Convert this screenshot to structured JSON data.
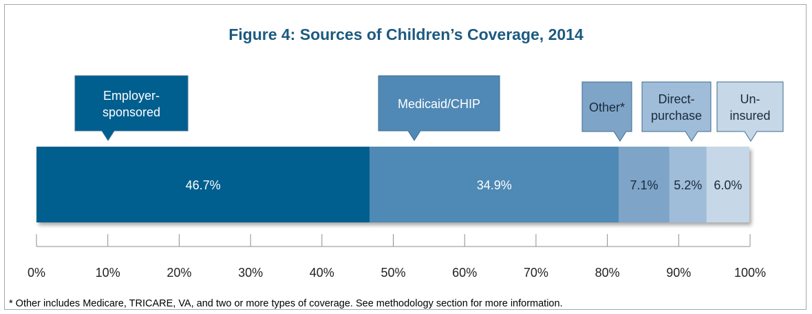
{
  "title": "Figure 4: Sources of Children’s Coverage, 2014",
  "footnote": "* Other includes Medicare, TRICARE, VA, and two or more types of coverage. See methodology section for more information.",
  "colors": {
    "employer": "#005f8f",
    "medicaid": "#5089b5",
    "other": "#7ea4c8",
    "direct": "#9fbcd9",
    "uninsured": "#c6d7e7",
    "title": "#1c5a80"
  },
  "chart_data": {
    "type": "bar",
    "orientation": "horizontal-stacked",
    "title": "Figure 4: Sources of Children’s Coverage, 2014",
    "xlim": [
      0,
      100
    ],
    "x_ticks": [
      "0%",
      "10%",
      "20%",
      "30%",
      "40%",
      "50%",
      "60%",
      "70%",
      "80%",
      "90%",
      "100%"
    ],
    "series": [
      {
        "name": "Employer-sponsored",
        "label_lines": [
          "Employer-",
          "sponsored"
        ],
        "value": 46.7,
        "value_label": "46.7%",
        "color": "#005f8f",
        "text_color": "#ffffff"
      },
      {
        "name": "Medicaid/CHIP",
        "label_lines": [
          "Medicaid/CHIP"
        ],
        "value": 34.9,
        "value_label": "34.9%",
        "color": "#5089b5",
        "text_color": "#ffffff"
      },
      {
        "name": "Other*",
        "label_lines": [
          "Other*"
        ],
        "value": 7.1,
        "value_label": "7.1%",
        "color": "#7ea4c8",
        "text_color": "#1a2a3a"
      },
      {
        "name": "Direct-purchase",
        "label_lines": [
          "Direct-",
          "purchase"
        ],
        "value": 5.2,
        "value_label": "5.2%",
        "color": "#9fbcd9",
        "text_color": "#1a2a3a"
      },
      {
        "name": "Uninsured",
        "label_lines": [
          "Un-",
          "insured"
        ],
        "value": 6.0,
        "value_label": "6.0%",
        "color": "#c6d7e7",
        "text_color": "#1a2a3a"
      }
    ]
  }
}
